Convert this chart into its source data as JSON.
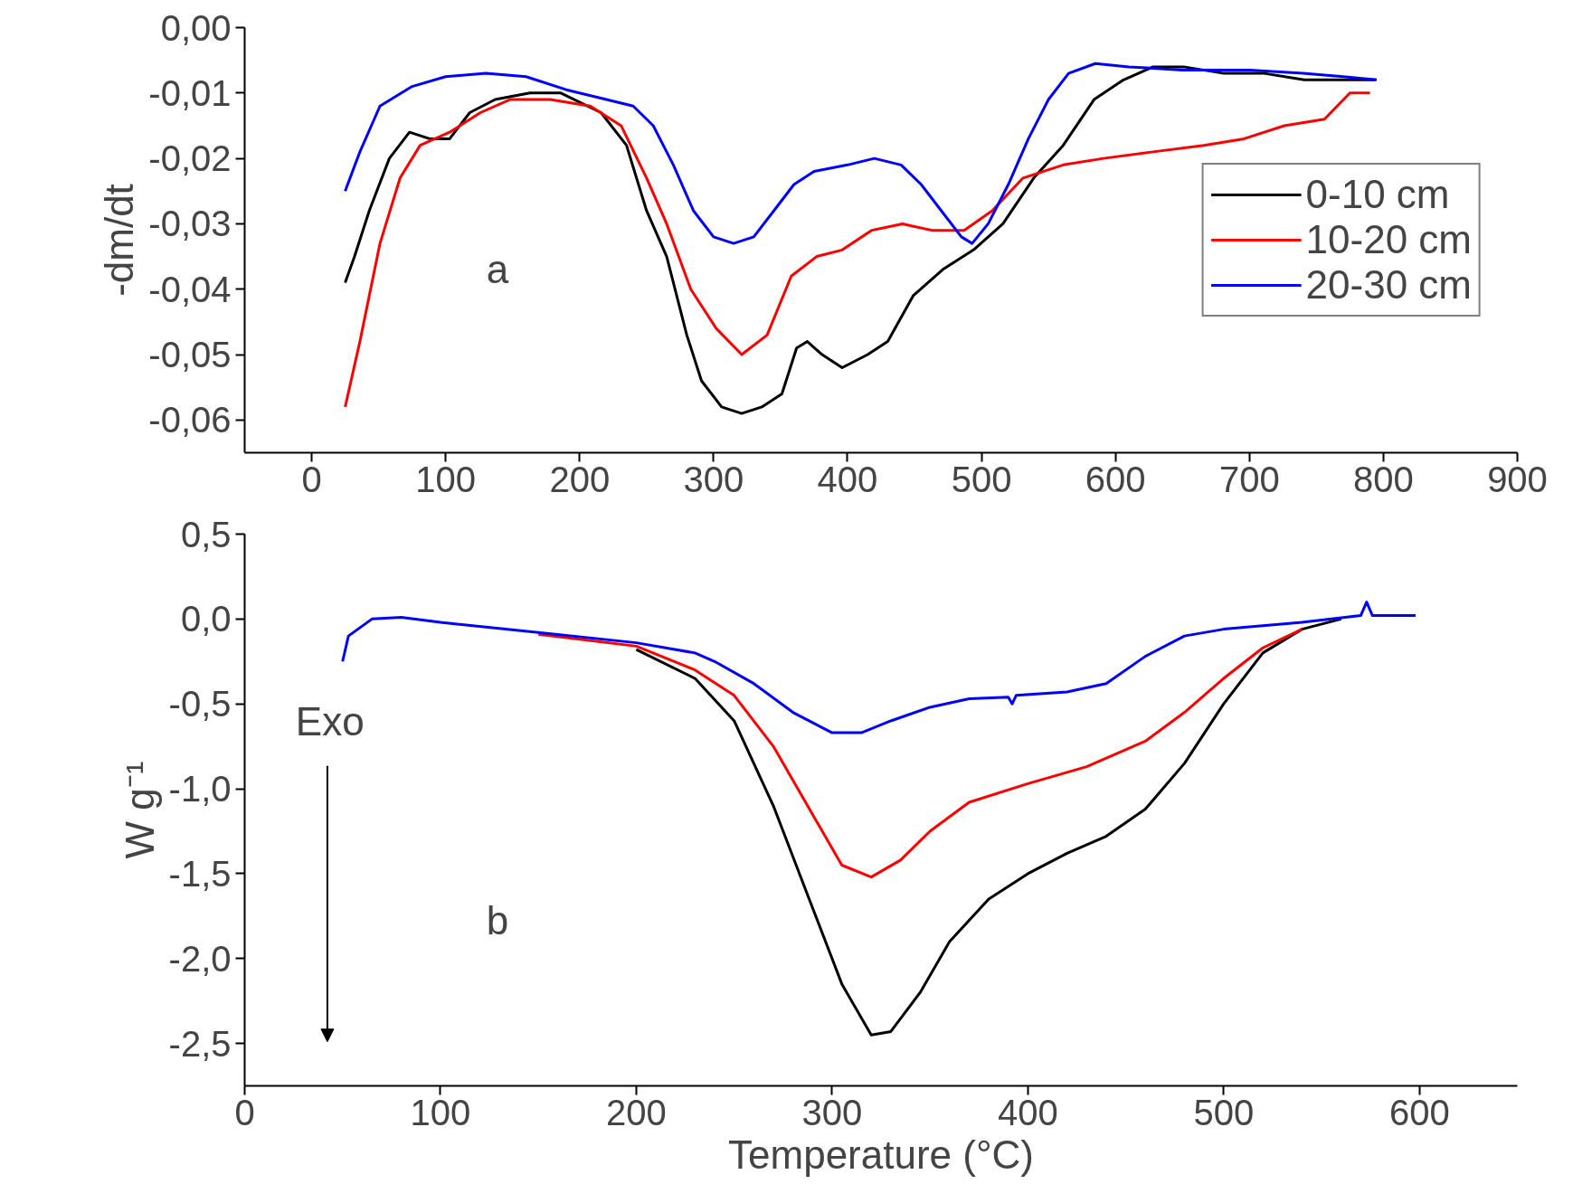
{
  "chart_data": [
    {
      "type": "line",
      "ylabel": "-dm/dt",
      "annotations": [
        "a"
      ],
      "legend": "right",
      "grid": false,
      "xlim": [
        -50,
        900
      ],
      "xticks": [
        0,
        100,
        200,
        300,
        400,
        500,
        600,
        700,
        800,
        900
      ],
      "ylim": [
        -0.065,
        0
      ],
      "yticks": [
        {
          "value": 0,
          "label": "0,00"
        },
        {
          "value": -0.01,
          "label": "-0,01"
        },
        {
          "value": -0.02,
          "label": "-0,02"
        },
        {
          "value": -0.03,
          "label": "-0,03"
        },
        {
          "value": -0.04,
          "label": "-0,04"
        },
        {
          "value": -0.05,
          "label": "-0,05"
        },
        {
          "value": -0.06,
          "label": "-0,06"
        }
      ],
      "series": [
        {
          "name": "0-10 cm",
          "color": "#000000",
          "x": [
            25,
            32,
            43,
            58,
            73,
            88,
            103,
            118,
            137,
            163,
            186,
            216,
            235,
            250,
            265,
            280,
            291,
            306,
            321,
            336,
            351,
            362,
            370,
            381,
            396,
            415,
            430,
            449,
            471,
            494,
            516,
            539,
            561,
            584,
            606,
            628,
            651,
            681,
            711,
            741,
            771,
            794
          ],
          "values": [
            -0.039,
            -0.035,
            -0.028,
            -0.02,
            -0.016,
            -0.017,
            -0.017,
            -0.013,
            -0.011,
            -0.01,
            -0.01,
            -0.013,
            -0.018,
            -0.028,
            -0.035,
            -0.047,
            -0.054,
            -0.058,
            -0.059,
            -0.058,
            -0.056,
            -0.049,
            -0.048,
            -0.05,
            -0.052,
            -0.05,
            -0.048,
            -0.041,
            -0.037,
            -0.034,
            -0.03,
            -0.023,
            -0.018,
            -0.011,
            -0.008,
            -0.006,
            -0.006,
            -0.007,
            -0.007,
            -0.008,
            -0.008,
            -0.008
          ]
        },
        {
          "name": "10-20 cm",
          "color": "#ff0000",
          "x": [
            25,
            36,
            51,
            66,
            81,
            103,
            126,
            148,
            178,
            208,
            231,
            250,
            265,
            283,
            302,
            321,
            340,
            358,
            377,
            396,
            418,
            441,
            463,
            487,
            508,
            531,
            561,
            591,
            628,
            666,
            696,
            726,
            756,
            775,
            790
          ],
          "values": [
            -0.058,
            -0.048,
            -0.033,
            -0.023,
            -0.018,
            -0.016,
            -0.013,
            -0.011,
            -0.011,
            -0.012,
            -0.015,
            -0.023,
            -0.03,
            -0.04,
            -0.046,
            -0.05,
            -0.047,
            -0.038,
            -0.035,
            -0.034,
            -0.031,
            -0.03,
            -0.031,
            -0.031,
            -0.028,
            -0.023,
            -0.021,
            -0.02,
            -0.019,
            -0.018,
            -0.017,
            -0.015,
            -0.014,
            -0.01,
            -0.01
          ]
        },
        {
          "name": "20-30 cm",
          "color": "#0000ff",
          "x": [
            25,
            36,
            51,
            75,
            100,
            130,
            160,
            190,
            220,
            240,
            255,
            270,
            285,
            300,
            315,
            330,
            345,
            360,
            375,
            400,
            420,
            440,
            455,
            470,
            485,
            493,
            505,
            520,
            535,
            550,
            565,
            585,
            610,
            650,
            700,
            740,
            770,
            795
          ],
          "values": [
            -0.025,
            -0.019,
            -0.012,
            -0.009,
            -0.0075,
            -0.007,
            -0.0075,
            -0.0095,
            -0.011,
            -0.012,
            -0.015,
            -0.021,
            -0.028,
            -0.032,
            -0.033,
            -0.032,
            -0.028,
            -0.024,
            -0.022,
            -0.021,
            -0.02,
            -0.021,
            -0.024,
            -0.028,
            -0.032,
            -0.033,
            -0.03,
            -0.024,
            -0.017,
            -0.011,
            -0.007,
            -0.0055,
            -0.006,
            -0.0065,
            -0.0065,
            -0.007,
            -0.0075,
            -0.008
          ]
        }
      ]
    },
    {
      "type": "line",
      "xlabel": "Temperature (°C)",
      "ylabel": "W g⁻¹",
      "annotations": [
        "Exo",
        "b"
      ],
      "grid": false,
      "xlim": [
        0,
        650
      ],
      "xticks": [
        0,
        100,
        200,
        300,
        400,
        500,
        600
      ],
      "ylim": [
        -2.75,
        0.5
      ],
      "yticks": [
        {
          "value": 0.5,
          "label": "0,5"
        },
        {
          "value": 0,
          "label": "0,0"
        },
        {
          "value": -0.5,
          "label": "-0,5"
        },
        {
          "value": -1,
          "label": "-1,0"
        },
        {
          "value": -1.5,
          "label": "-1,5"
        },
        {
          "value": -2,
          "label": "-2,0"
        },
        {
          "value": -2.5,
          "label": "-2,5"
        }
      ],
      "series": [
        {
          "color": "#000000",
          "x": [
            200,
            230,
            250,
            270,
            290,
            305,
            320,
            330,
            345,
            360,
            380,
            400,
            420,
            440,
            460,
            480,
            500,
            520,
            540,
            560
          ],
          "values": [
            -0.18,
            -0.35,
            -0.6,
            -1.1,
            -1.7,
            -2.15,
            -2.45,
            -2.43,
            -2.2,
            -1.9,
            -1.65,
            -1.5,
            -1.38,
            -1.28,
            -1.12,
            -0.85,
            -0.5,
            -0.2,
            -0.06,
            0
          ]
        },
        {
          "color": "#ff0000",
          "x": [
            150,
            200,
            230,
            250,
            270,
            290,
            305,
            320,
            335,
            350,
            370,
            400,
            430,
            460,
            480,
            500,
            520,
            540
          ],
          "values": [
            -0.09,
            -0.16,
            -0.3,
            -0.45,
            -0.75,
            -1.15,
            -1.45,
            -1.52,
            -1.42,
            -1.25,
            -1.08,
            -0.97,
            -0.87,
            -0.72,
            -0.55,
            -0.35,
            -0.17,
            -0.06
          ]
        },
        {
          "color": "#0000ff",
          "x": [
            50,
            53,
            65,
            80,
            100,
            150,
            200,
            230,
            240,
            260,
            280,
            300,
            315,
            330,
            350,
            370,
            390,
            392,
            394,
            420,
            440,
            460,
            480,
            500,
            540,
            570,
            573,
            576,
            598
          ],
          "values": [
            -0.25,
            -0.1,
            0,
            0.01,
            -0.02,
            -0.08,
            -0.14,
            -0.2,
            -0.25,
            -0.38,
            -0.55,
            -0.67,
            -0.67,
            -0.6,
            -0.52,
            -0.47,
            -0.46,
            -0.5,
            -0.45,
            -0.43,
            -0.38,
            -0.22,
            -0.1,
            -0.06,
            -0.02,
            0.02,
            0.1,
            0.02,
            0.02
          ]
        }
      ]
    }
  ]
}
